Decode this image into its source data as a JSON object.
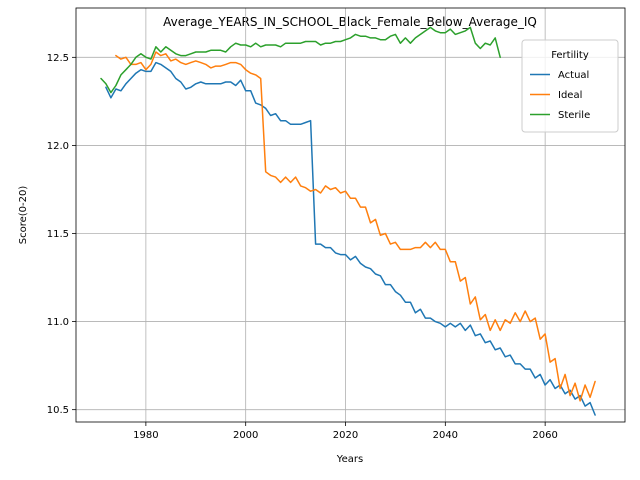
{
  "chart_data": {
    "type": "line",
    "title": "Average_YEARS_IN_SCHOOL_Black_Female_Below_Average_IQ",
    "xlabel": "Years",
    "ylabel": "Score(0-20)",
    "xlim": [
      1966,
      2076
    ],
    "ylim": [
      10.43,
      12.78
    ],
    "xticks": [
      1980,
      2000,
      2020,
      2040,
      2060
    ],
    "yticks": [
      10.5,
      11.0,
      11.5,
      12.0,
      12.5
    ],
    "grid": true,
    "legend": {
      "title": "Fertility",
      "placement": "top-right"
    },
    "series": [
      {
        "name": "Actual",
        "color": "#1f77b4",
        "x": [
          1972,
          1973,
          1974,
          1975,
          1976,
          1977,
          1978,
          1979,
          1980,
          1981,
          1982,
          1983,
          1984,
          1985,
          1986,
          1987,
          1988,
          1989,
          1990,
          1991,
          1992,
          1993,
          1994,
          1995,
          1996,
          1997,
          1998,
          1999,
          2000,
          2001,
          2002,
          2003,
          2004,
          2005,
          2006,
          2007,
          2008,
          2009,
          2010,
          2011,
          2012,
          2013,
          2014,
          2015,
          2016,
          2017,
          2018,
          2019,
          2020,
          2021,
          2022,
          2023,
          2024,
          2025,
          2026,
          2027,
          2028,
          2029,
          2030,
          2031,
          2032,
          2033,
          2034,
          2035,
          2036,
          2037,
          2038,
          2039,
          2040,
          2041,
          2042,
          2043,
          2044,
          2045,
          2046,
          2047,
          2048,
          2049,
          2050,
          2051,
          2052,
          2053,
          2054,
          2055,
          2056,
          2057,
          2058,
          2059,
          2060,
          2061,
          2062,
          2063,
          2064,
          2065,
          2066,
          2067,
          2068,
          2069,
          2070
        ],
        "values": [
          12.33,
          12.27,
          12.32,
          12.31,
          12.35,
          12.38,
          12.41,
          12.43,
          12.42,
          12.42,
          12.47,
          12.46,
          12.44,
          12.42,
          12.38,
          12.36,
          12.32,
          12.33,
          12.35,
          12.36,
          12.35,
          12.35,
          12.35,
          12.35,
          12.36,
          12.36,
          12.34,
          12.37,
          12.31,
          12.31,
          12.24,
          12.23,
          12.21,
          12.17,
          12.18,
          12.14,
          12.14,
          12.12,
          12.12,
          12.12,
          12.13,
          12.14,
          11.44,
          11.44,
          11.42,
          11.42,
          11.39,
          11.38,
          11.38,
          11.35,
          11.37,
          11.33,
          11.31,
          11.3,
          11.27,
          11.26,
          11.21,
          11.21,
          11.17,
          11.15,
          11.11,
          11.11,
          11.05,
          11.07,
          11.02,
          11.02,
          11.0,
          10.99,
          10.97,
          10.99,
          10.97,
          10.99,
          10.95,
          10.98,
          10.92,
          10.93,
          10.88,
          10.89,
          10.84,
          10.85,
          10.8,
          10.81,
          10.76,
          10.76,
          10.73,
          10.73,
          10.68,
          10.7,
          10.64,
          10.67,
          10.62,
          10.64,
          10.59,
          10.61,
          10.56,
          10.58,
          10.52,
          10.54,
          10.47
        ]
      },
      {
        "name": "Ideal",
        "color": "#ff7f0e",
        "x": [
          1974,
          1975,
          1976,
          1977,
          1978,
          1979,
          1980,
          1981,
          1982,
          1983,
          1984,
          1985,
          1986,
          1987,
          1988,
          1989,
          1990,
          1991,
          1992,
          1993,
          1994,
          1995,
          1996,
          1997,
          1998,
          1999,
          2000,
          2001,
          2002,
          2003,
          2004,
          2005,
          2006,
          2007,
          2008,
          2009,
          2010,
          2011,
          2012,
          2013,
          2014,
          2015,
          2016,
          2017,
          2018,
          2019,
          2020,
          2021,
          2022,
          2023,
          2024,
          2025,
          2026,
          2027,
          2028,
          2029,
          2030,
          2031,
          2032,
          2033,
          2034,
          2035,
          2036,
          2037,
          2038,
          2039,
          2040,
          2041,
          2042,
          2043,
          2044,
          2045,
          2046,
          2047,
          2048,
          2049,
          2050,
          2051,
          2052,
          2053,
          2054,
          2055,
          2056,
          2057,
          2058,
          2059,
          2060,
          2061,
          2062,
          2063,
          2064,
          2065,
          2066,
          2067,
          2068,
          2069,
          2070
        ],
        "values": [
          12.51,
          12.49,
          12.5,
          12.46,
          12.46,
          12.47,
          12.43,
          12.46,
          12.53,
          12.51,
          12.52,
          12.48,
          12.49,
          12.47,
          12.46,
          12.47,
          12.48,
          12.47,
          12.46,
          12.44,
          12.45,
          12.45,
          12.46,
          12.47,
          12.47,
          12.46,
          12.43,
          12.41,
          12.4,
          12.38,
          11.85,
          11.83,
          11.82,
          11.79,
          11.82,
          11.79,
          11.82,
          11.77,
          11.76,
          11.74,
          11.75,
          11.73,
          11.77,
          11.75,
          11.76,
          11.73,
          11.74,
          11.7,
          11.7,
          11.65,
          11.65,
          11.56,
          11.58,
          11.49,
          11.5,
          11.44,
          11.45,
          11.41,
          11.41,
          11.41,
          11.42,
          11.42,
          11.45,
          11.42,
          11.45,
          11.41,
          11.41,
          11.34,
          11.34,
          11.23,
          11.25,
          11.1,
          11.14,
          11.01,
          11.04,
          10.95,
          11.01,
          10.95,
          11.01,
          10.99,
          11.05,
          11.0,
          11.06,
          11.0,
          11.02,
          10.9,
          10.93,
          10.77,
          10.79,
          10.62,
          10.7,
          10.58,
          10.65,
          10.55,
          10.64,
          10.57,
          10.66
        ]
      },
      {
        "name": "Sterile",
        "color": "#2ca02c",
        "x": [
          1971,
          1972,
          1973,
          1974,
          1975,
          1976,
          1977,
          1978,
          1979,
          1980,
          1981,
          1982,
          1983,
          1984,
          1985,
          1986,
          1987,
          1988,
          1989,
          1990,
          1991,
          1992,
          1993,
          1994,
          1995,
          1996,
          1997,
          1998,
          1999,
          2000,
          2001,
          2002,
          2003,
          2004,
          2005,
          2006,
          2007,
          2008,
          2009,
          2010,
          2011,
          2012,
          2013,
          2014,
          2015,
          2016,
          2017,
          2018,
          2019,
          2020,
          2021,
          2022,
          2023,
          2024,
          2025,
          2026,
          2027,
          2028,
          2029,
          2030,
          2031,
          2032,
          2033,
          2034,
          2035,
          2036,
          2037,
          2038,
          2039,
          2040,
          2041,
          2042,
          2043,
          2044,
          2045,
          2046,
          2047,
          2048,
          2049,
          2050,
          2051
        ],
        "values": [
          12.38,
          12.35,
          12.3,
          12.34,
          12.4,
          12.43,
          12.46,
          12.5,
          12.52,
          12.5,
          12.49,
          12.56,
          12.53,
          12.56,
          12.54,
          12.52,
          12.51,
          12.51,
          12.52,
          12.53,
          12.53,
          12.53,
          12.54,
          12.54,
          12.54,
          12.53,
          12.56,
          12.58,
          12.57,
          12.57,
          12.56,
          12.58,
          12.56,
          12.57,
          12.57,
          12.57,
          12.56,
          12.58,
          12.58,
          12.58,
          12.58,
          12.59,
          12.59,
          12.59,
          12.57,
          12.58,
          12.58,
          12.59,
          12.59,
          12.6,
          12.61,
          12.63,
          12.62,
          12.62,
          12.61,
          12.61,
          12.6,
          12.6,
          12.62,
          12.63,
          12.58,
          12.61,
          12.58,
          12.61,
          12.63,
          12.65,
          12.67,
          12.65,
          12.64,
          12.64,
          12.66,
          12.63,
          12.64,
          12.65,
          12.67,
          12.58,
          12.55,
          12.58,
          12.57,
          12.61,
          12.5
        ]
      }
    ]
  }
}
